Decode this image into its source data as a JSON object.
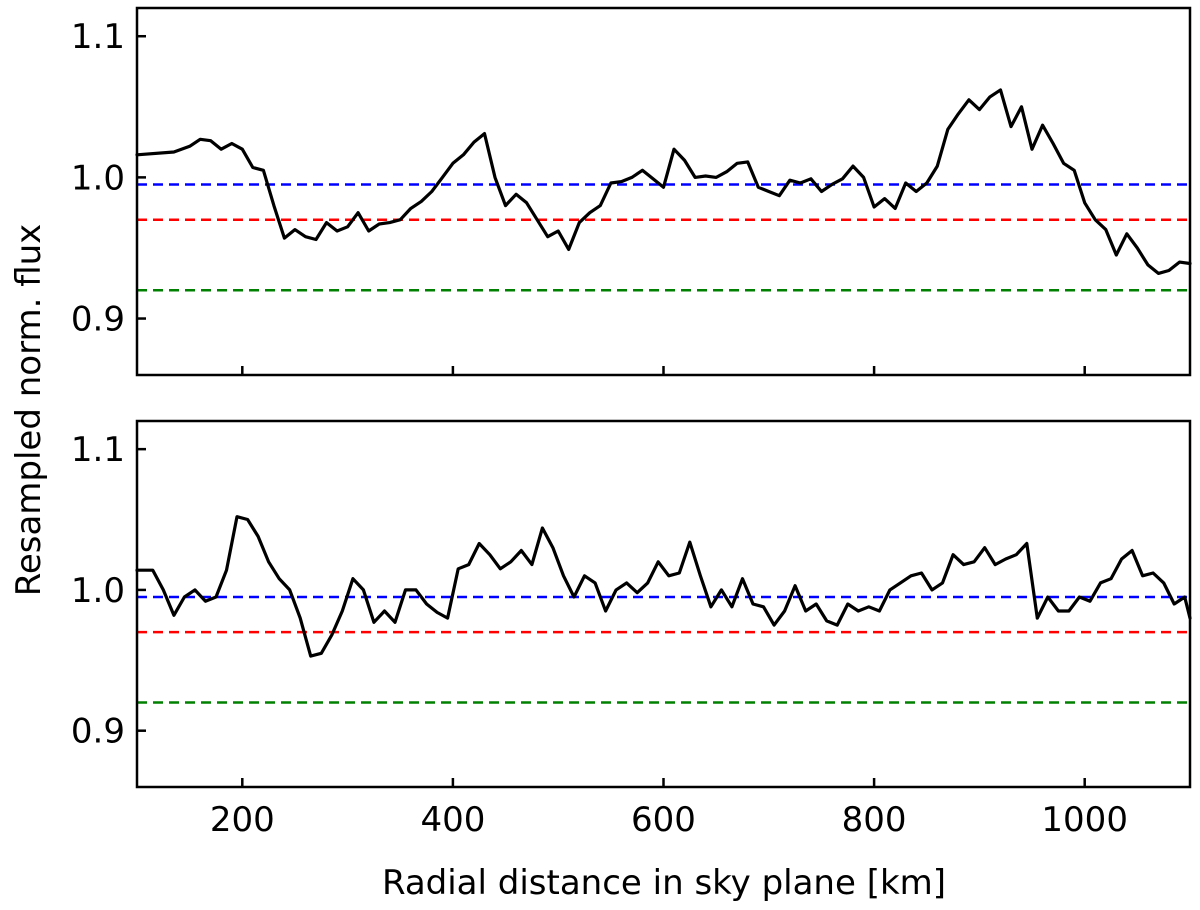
{
  "chart_data": {
    "type": "line",
    "xlabel": "Radial distance in sky plane [km]",
    "ylabel": "Resampled norm. flux",
    "xlim": [
      100,
      1100
    ],
    "xticks": [
      200,
      400,
      600,
      800,
      1000
    ],
    "xtick_labels": [
      "200",
      "400",
      "600",
      "800",
      "1000"
    ],
    "grid": false,
    "panels": [
      {
        "name": "top",
        "ylim": [
          0.86,
          1.12
        ],
        "yticks": [
          0.9,
          1.0,
          1.1
        ],
        "ytick_labels": [
          "0.9",
          "1.0",
          "1.1"
        ],
        "reference_lines": [
          {
            "name": "blue",
            "y": 0.995,
            "color": "#0000ff",
            "style": "dashed"
          },
          {
            "name": "red",
            "y": 0.97,
            "color": "#ff0000",
            "style": "dashed"
          },
          {
            "name": "green",
            "y": 0.92,
            "color": "#008000",
            "style": "dashed"
          }
        ],
        "series": [
          {
            "name": "resampled flux",
            "color": "#000000",
            "x": [
              100,
              135,
              150,
              160,
              170,
              180,
              190,
              200,
              210,
              220,
              230,
              240,
              250,
              260,
              270,
              280,
              290,
              300,
              310,
              320,
              330,
              340,
              350,
              360,
              370,
              380,
              390,
              400,
              410,
              420,
              430,
              440,
              450,
              460,
              470,
              480,
              490,
              500,
              510,
              520,
              530,
              540,
              550,
              560,
              570,
              580,
              590,
              600,
              610,
              620,
              630,
              640,
              650,
              660,
              670,
              680,
              690,
              700,
              710,
              720,
              730,
              740,
              750,
              760,
              770,
              780,
              790,
              800,
              810,
              820,
              830,
              840,
              850,
              860,
              870,
              880,
              890,
              900,
              910,
              920,
              930,
              940,
              950,
              960,
              970,
              980,
              990,
              1000,
              1010,
              1020,
              1030,
              1040,
              1050,
              1060,
              1070,
              1080,
              1090,
              1100
            ],
            "y": [
              1.016,
              1.018,
              1.022,
              1.027,
              1.026,
              1.02,
              1.024,
              1.02,
              1.007,
              1.005,
              0.98,
              0.957,
              0.963,
              0.958,
              0.956,
              0.968,
              0.962,
              0.965,
              0.975,
              0.962,
              0.967,
              0.968,
              0.97,
              0.978,
              0.983,
              0.99,
              1.0,
              1.01,
              1.016,
              1.025,
              1.031,
              1.0,
              0.98,
              0.988,
              0.982,
              0.97,
              0.958,
              0.962,
              0.949,
              0.968,
              0.975,
              0.98,
              0.996,
              0.997,
              1.0,
              1.005,
              0.999,
              0.993,
              1.02,
              1.012,
              1.0,
              1.001,
              1.0,
              1.004,
              1.01,
              1.011,
              0.993,
              0.99,
              0.987,
              0.998,
              0.996,
              0.999,
              0.99,
              0.995,
              0.999,
              1.008,
              1.0,
              0.979,
              0.985,
              0.978,
              0.996,
              0.99,
              0.996,
              1.008,
              1.034,
              1.045,
              1.055,
              1.048,
              1.057,
              1.062,
              1.036,
              1.05,
              1.02,
              1.037,
              1.024,
              1.01,
              1.005,
              0.982,
              0.97,
              0.963,
              0.945,
              0.96,
              0.95,
              0.938,
              0.932,
              0.934,
              0.94,
              0.939
            ]
          }
        ]
      },
      {
        "name": "bottom",
        "ylim": [
          0.86,
          1.12
        ],
        "yticks": [
          0.9,
          1.0,
          1.1
        ],
        "ytick_labels": [
          "0.9",
          "1.0",
          "1.1"
        ],
        "reference_lines": [
          {
            "name": "blue",
            "y": 0.995,
            "color": "#0000ff",
            "style": "dashed"
          },
          {
            "name": "red",
            "y": 0.97,
            "color": "#ff0000",
            "style": "dashed"
          },
          {
            "name": "green",
            "y": 0.92,
            "color": "#008000",
            "style": "dashed"
          }
        ],
        "series": [
          {
            "name": "resampled flux",
            "color": "#000000",
            "x": [
              100,
              115,
              125,
              135,
              145,
              155,
              165,
              175,
              185,
              195,
              205,
              215,
              225,
              235,
              245,
              255,
              265,
              275,
              285,
              295,
              305,
              315,
              325,
              335,
              345,
              355,
              365,
              375,
              385,
              395,
              405,
              415,
              425,
              435,
              445,
              455,
              465,
              475,
              485,
              495,
              505,
              515,
              525,
              535,
              545,
              555,
              565,
              575,
              585,
              595,
              605,
              615,
              625,
              635,
              645,
              655,
              665,
              675,
              685,
              695,
              705,
              715,
              725,
              735,
              745,
              755,
              765,
              775,
              785,
              795,
              805,
              815,
              825,
              835,
              845,
              855,
              865,
              875,
              885,
              895,
              905,
              915,
              925,
              935,
              945,
              955,
              965,
              975,
              985,
              995,
              1005,
              1015,
              1025,
              1035,
              1045,
              1055,
              1065,
              1075,
              1085,
              1095,
              1100
            ],
            "y": [
              1.014,
              1.014,
              1.0,
              0.982,
              0.995,
              1.0,
              0.992,
              0.995,
              1.014,
              1.052,
              1.05,
              1.038,
              1.02,
              1.008,
              1.0,
              0.98,
              0.953,
              0.955,
              0.968,
              0.985,
              1.008,
              1.0,
              0.977,
              0.985,
              0.977,
              1.0,
              1.0,
              0.99,
              0.984,
              0.98,
              1.015,
              1.018,
              1.033,
              1.025,
              1.015,
              1.02,
              1.028,
              1.018,
              1.044,
              1.03,
              1.01,
              0.995,
              1.01,
              1.005,
              0.985,
              1.0,
              1.005,
              0.998,
              1.005,
              1.02,
              1.01,
              1.012,
              1.034,
              1.01,
              0.988,
              1.0,
              0.988,
              1.008,
              0.99,
              0.988,
              0.975,
              0.985,
              1.003,
              0.985,
              0.99,
              0.978,
              0.975,
              0.99,
              0.985,
              0.988,
              0.985,
              1.0,
              1.005,
              1.01,
              1.012,
              1.0,
              1.005,
              1.025,
              1.018,
              1.02,
              1.03,
              1.018,
              1.022,
              1.025,
              1.033,
              0.98,
              0.995,
              0.985,
              0.985,
              0.995,
              0.992,
              1.005,
              1.008,
              1.022,
              1.028,
              1.01,
              1.012,
              1.005,
              0.99,
              0.995,
              0.98
            ]
          }
        ]
      }
    ]
  }
}
